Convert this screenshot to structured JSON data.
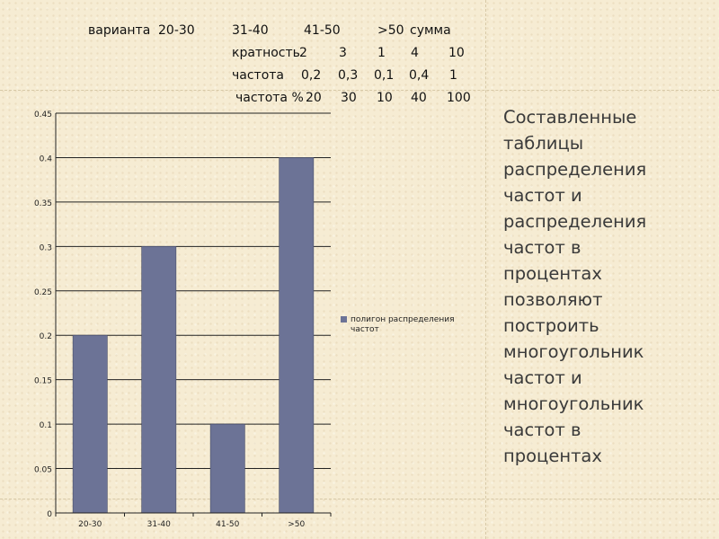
{
  "table": {
    "rows": [
      [
        "варианта",
        "20-30",
        "31-40",
        "41-50",
        ">50",
        "сумма"
      ],
      [
        "кратность",
        "2",
        "3",
        "1",
        "4",
        "10"
      ],
      [
        "частота",
        "0,2",
        "0,3",
        "0,1",
        "0,4",
        "1"
      ],
      [
        "частота %",
        "20",
        "30",
        "10",
        "40",
        "100"
      ]
    ]
  },
  "chart_data": {
    "type": "bar",
    "categories": [
      "20-30",
      "31-40",
      "41-50",
      ">50"
    ],
    "series": [
      {
        "name": "полигон распределения частот",
        "values": [
          0.2,
          0.3,
          0.1,
          0.4
        ]
      }
    ],
    "ylim": [
      0,
      0.45
    ],
    "yticks": [
      "0",
      "0.05",
      "0.1",
      "0.15",
      "0.2",
      "0.25",
      "0.3",
      "0.35",
      "0.4",
      "0.45"
    ],
    "grid": true,
    "legend_position": "right",
    "bar_color": "#6c7396"
  },
  "side_text": "Составленные\nтаблицы\nраспределения\nчастот и\nраспределения\nчастот в\nпроцентах\nпозволяют\nпостроить\nмногоугольник\nчастот и\nмногоугольник\nчастот в\nпроцентах"
}
